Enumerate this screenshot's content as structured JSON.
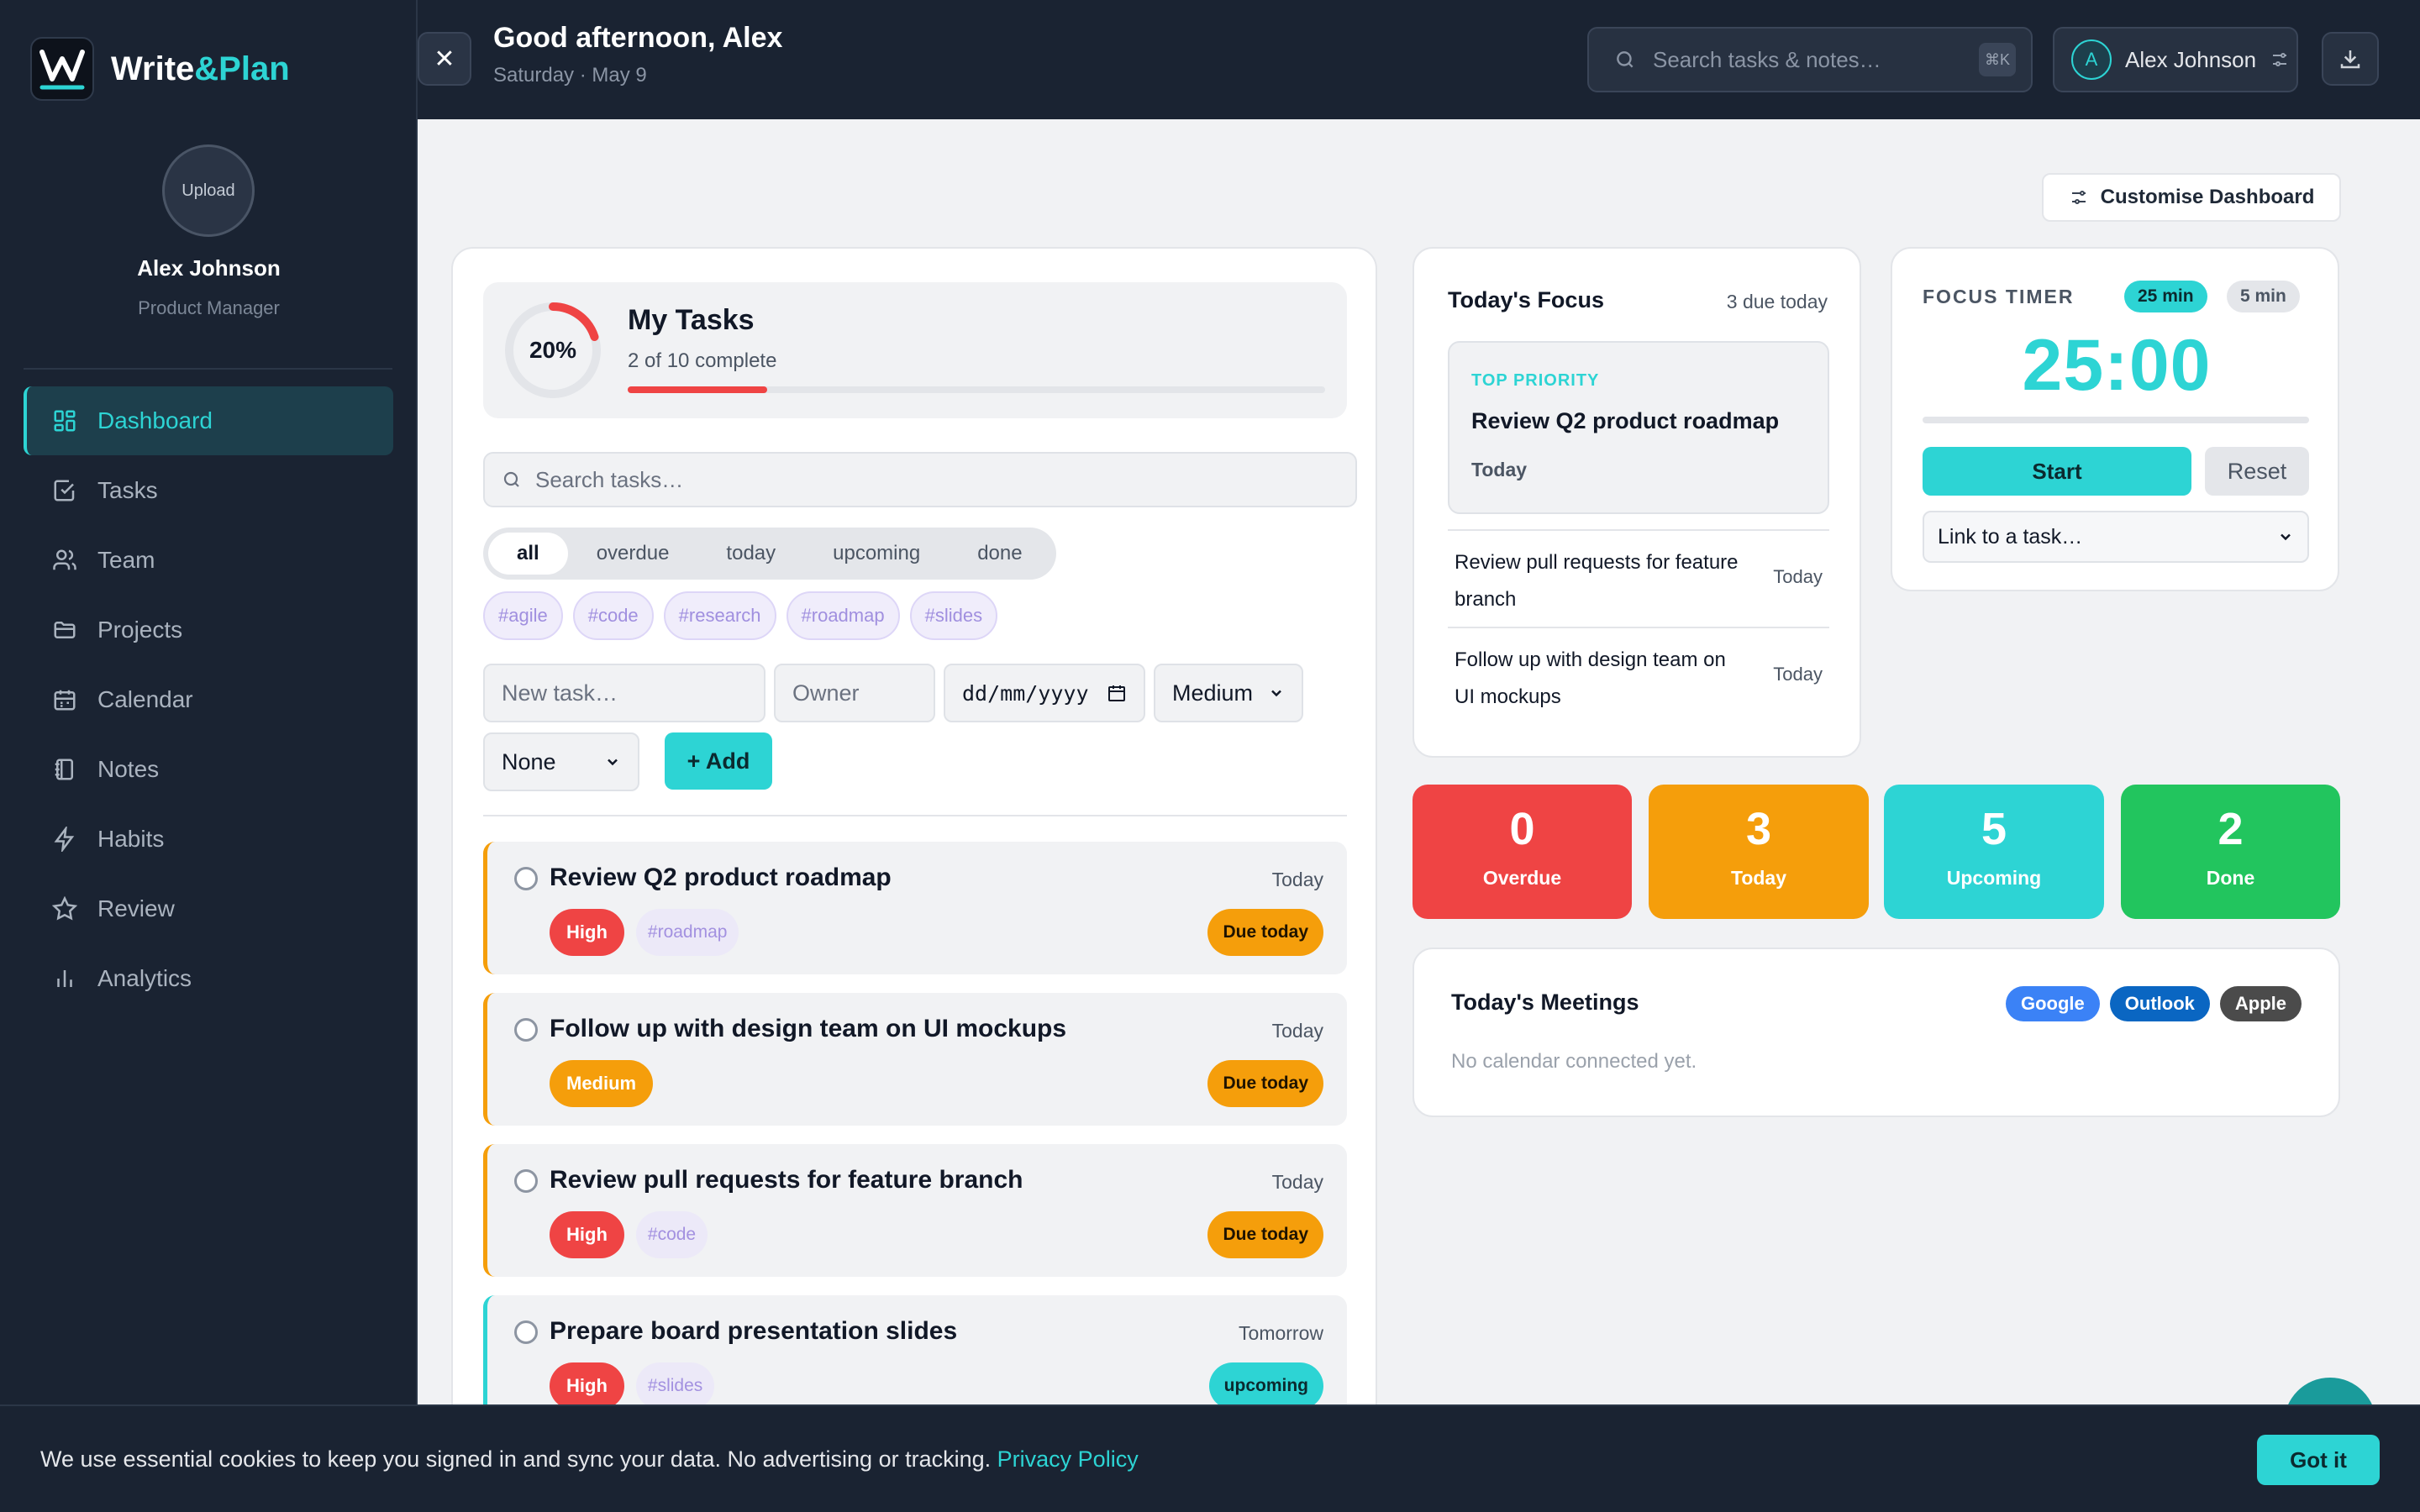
{
  "app": {
    "name_part1": "Write",
    "name_part2": "&Plan",
    "accent": "#2dd4d4"
  },
  "profile": {
    "upload_label": "Upload",
    "name": "Alex Johnson",
    "role": "Product Manager"
  },
  "sidebar": {
    "items": [
      {
        "label": "Dashboard",
        "icon": "grid-icon",
        "active": true
      },
      {
        "label": "Tasks",
        "icon": "checkbox-icon"
      },
      {
        "label": "Team",
        "icon": "users-icon"
      },
      {
        "label": "Projects",
        "icon": "folder-icon"
      },
      {
        "label": "Calendar",
        "icon": "calendar-icon"
      },
      {
        "label": "Notes",
        "icon": "notebook-icon"
      },
      {
        "label": "Habits",
        "icon": "bolt-icon"
      },
      {
        "label": "Review",
        "icon": "star-icon"
      },
      {
        "label": "Analytics",
        "icon": "bar-chart-icon"
      }
    ]
  },
  "header": {
    "greeting": "Good afternoon, Alex",
    "date": "Saturday · May 9",
    "search_placeholder": "Search tasks & notes…",
    "search_shortcut": "⌘K",
    "user_initial": "A",
    "user_name": "Alex Johnson"
  },
  "customise_label": "Customise Dashboard",
  "tasks_panel": {
    "progress_label": "20%",
    "progress_fraction": 0.2,
    "title": "My Tasks",
    "subtitle": "2 of 10 complete",
    "search_placeholder": "Search tasks…",
    "filters": [
      "all",
      "overdue",
      "today",
      "upcoming",
      "done"
    ],
    "active_filter": "all",
    "tags": [
      "#agile",
      "#code",
      "#research",
      "#roadmap",
      "#slides"
    ],
    "form": {
      "new_task_placeholder": "New task…",
      "owner_placeholder": "Owner",
      "date_placeholder": "dd/mm/yyyy",
      "priority_value": "Medium",
      "repeat_value": "None",
      "add_label": "+ Add"
    },
    "tasks": [
      {
        "title": "Review Q2 product roadmap",
        "when": "Today",
        "priority": "High",
        "tag": "#roadmap",
        "status": "Due today"
      },
      {
        "title": "Follow up with design team on UI mockups",
        "when": "Today",
        "priority": "Medium",
        "tag": "",
        "status": "Due today"
      },
      {
        "title": "Review pull requests for feature branch",
        "when": "Today",
        "priority": "High",
        "tag": "#code",
        "status": "Due today"
      },
      {
        "title": "Prepare board presentation slides",
        "when": "Tomorrow",
        "priority": "High",
        "tag": "#slides",
        "status": "upcoming"
      }
    ]
  },
  "focus": {
    "title": "Today's Focus",
    "count": "3 due today",
    "top_label": "TOP PRIORITY",
    "top_task": "Review Q2 product roadmap",
    "top_when": "Today",
    "items": [
      {
        "title": "Review pull requests for feature branch",
        "when": "Today"
      },
      {
        "title": "Follow up with design team on UI mockups",
        "when": "Today"
      }
    ]
  },
  "timer": {
    "label": "FOCUS TIMER",
    "opt1": "25 min",
    "opt2": "5 min",
    "time": "25:00",
    "start_label": "Start",
    "reset_label": "Reset",
    "link_label": "Link to a task…"
  },
  "stats": [
    {
      "value": "0",
      "label": "Overdue",
      "color": "#ef4444"
    },
    {
      "value": "3",
      "label": "Today",
      "color": "#f59e0b"
    },
    {
      "value": "5",
      "label": "Upcoming",
      "color": "#2dd4d4"
    },
    {
      "value": "2",
      "label": "Done",
      "color": "#22c55e"
    }
  ],
  "meetings": {
    "title": "Today's Meetings",
    "empty": "No calendar connected yet.",
    "providers": [
      {
        "label": "Google",
        "color": "#3b82f6"
      },
      {
        "label": "Outlook",
        "color": "#0a66c2"
      },
      {
        "label": "Apple",
        "color": "#4b4b4b"
      }
    ]
  },
  "cookie": {
    "message": "We use essential cookies to keep you signed in and sync your data. No advertising or tracking.",
    "link": "Privacy Policy",
    "button": "Got it"
  }
}
